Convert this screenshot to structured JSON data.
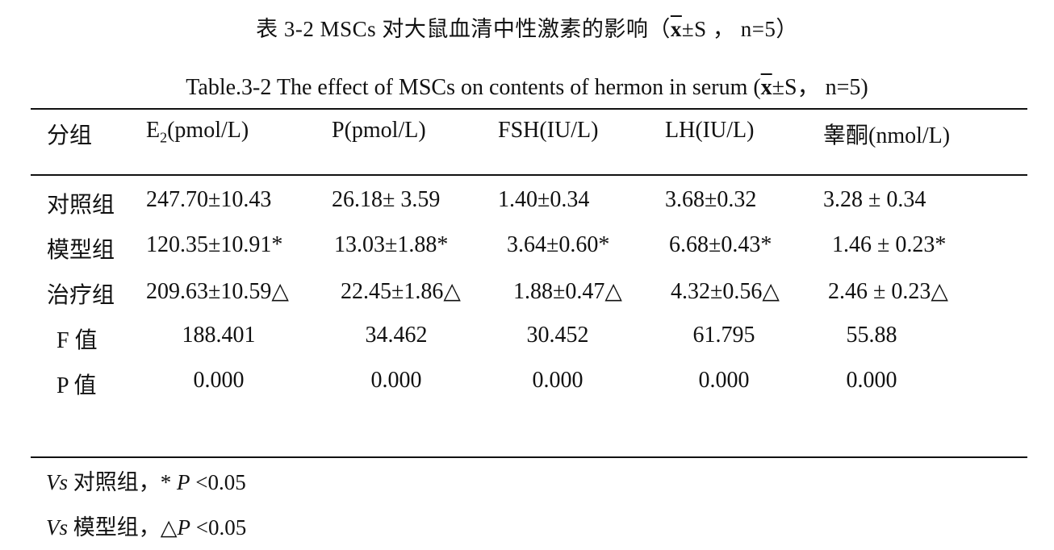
{
  "title": {
    "cn_prefix": "表 3-2 MSCs 对大鼠血清中性激素的影响（",
    "cn_xbar": "x",
    "cn_suffix": "±S ， n=5）",
    "en_prefix": "Table.3-2 The effect of MSCs on contents of hermon in serum (",
    "en_xbar": "x",
    "en_suffix": "±S， n=5)"
  },
  "table": {
    "headers": {
      "group": "分组",
      "e2_main": "E",
      "e2_sub": "2",
      "e2_unit": "(pmol/L)",
      "p": "P(pmol/L)",
      "fsh": "FSH(IU/L)",
      "lh": "LH(IU/L)",
      "testosterone": "睾酮(nmol/L)"
    },
    "rows": [
      {
        "group": "对照组",
        "e2": "247.70±10.43",
        "p": "26.18± 3.59",
        "fsh": "1.40±0.34",
        "lh": "3.68±0.32",
        "t": "3.28 ± 0.34"
      },
      {
        "group": "模型组",
        "e2": "120.35±10.91*",
        "p": "13.03±1.88*",
        "fsh": "3.64±0.60*",
        "lh": "6.68±0.43*",
        "t": "1.46 ± 0.23*"
      },
      {
        "group": "治疗组",
        "e2": "209.63±10.59△",
        "p": "22.45±1.86△",
        "fsh": "1.88±0.47△",
        "lh": "4.32±0.56△",
        "t": "2.46 ± 0.23△"
      },
      {
        "group": "F 值",
        "e2": "188.401",
        "p": "34.462",
        "fsh": "30.452",
        "lh": "61.795",
        "t": "55.88"
      },
      {
        "group": "P 值",
        "e2": "0.000",
        "p": "0.000",
        "fsh": "0.000",
        "lh": "0.000",
        "t": "0.000"
      }
    ]
  },
  "footnotes": [
    {
      "vs": "Vs",
      "text": " 对照组，* ",
      "p": "P",
      "cond": " <0.05"
    },
    {
      "vs": "Vs",
      "text": " 模型组，△",
      "p": "P",
      "cond": " <0.05"
    }
  ]
}
